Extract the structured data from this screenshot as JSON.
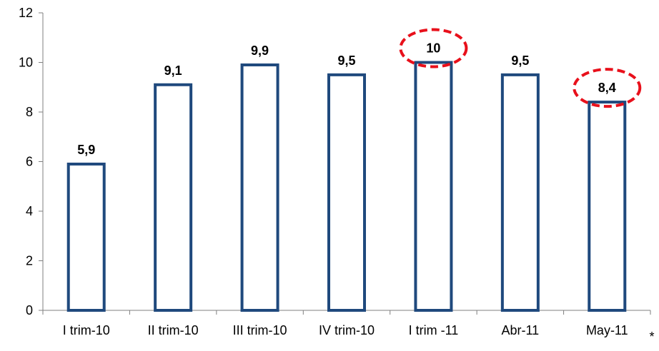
{
  "chart_data": {
    "type": "bar",
    "categories": [
      "I trim-10",
      "II trim-10",
      "III trim-10",
      "IV trim-10",
      "I trim -11",
      "Abr-11",
      "May-11"
    ],
    "values": [
      5.9,
      9.1,
      9.9,
      9.5,
      10,
      9.5,
      8.4
    ],
    "data_labels": [
      "5,9",
      "9,1",
      "9,9",
      "9,5",
      "10",
      "9,5",
      "8,4"
    ],
    "highlighted": [
      4,
      6
    ],
    "yticks": [
      0,
      2,
      4,
      6,
      8,
      10,
      12
    ],
    "ylim": [
      0,
      12
    ],
    "grid": false,
    "legend": "none",
    "footnote": "*",
    "colors": {
      "bar_outline": "#1f497d",
      "bar_fill": "#ffffff",
      "highlight": "#e8101b",
      "axis": "#7f7f7f"
    }
  }
}
